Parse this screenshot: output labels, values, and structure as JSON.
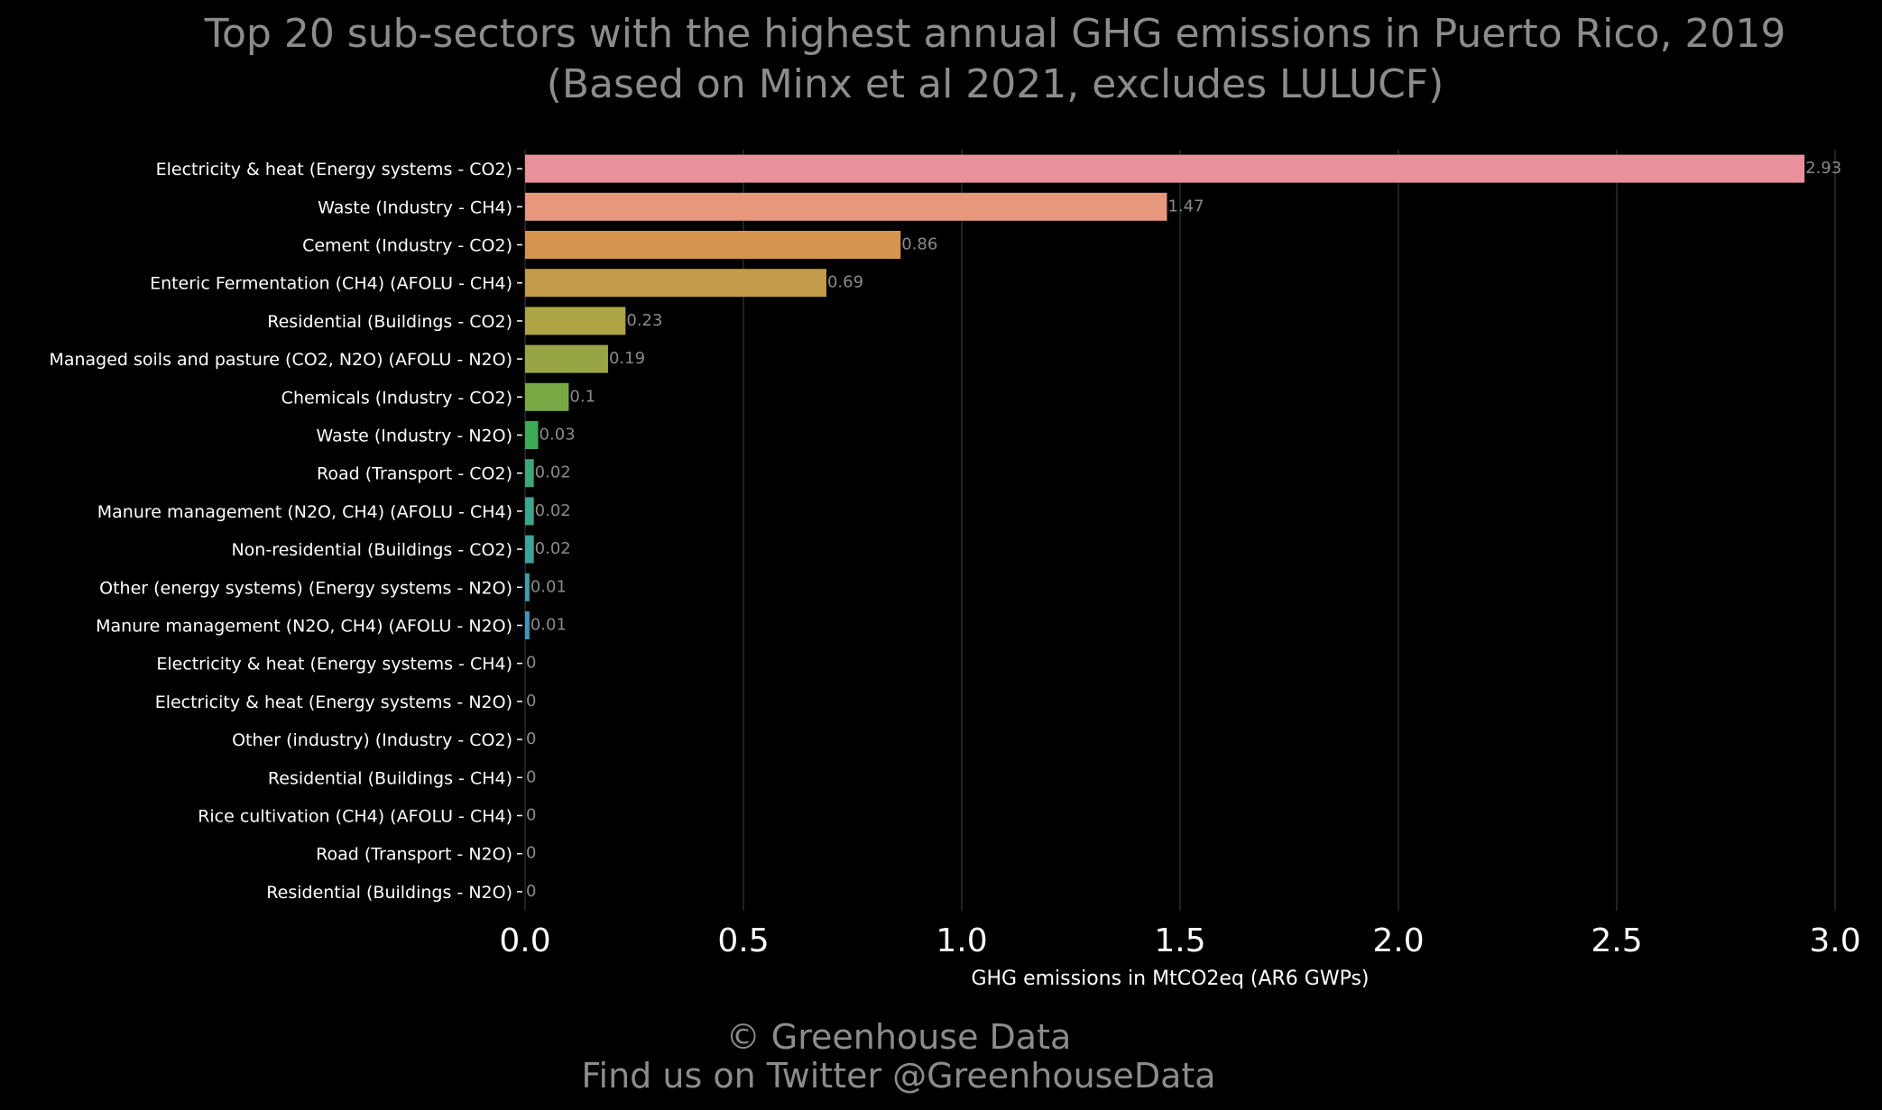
{
  "title_lines": [
    "Top 20 sub-sectors with the highest annual GHG emissions in Puerto Rico, 2019",
    "(Based on Minx et al 2021, excludes LULUCF)"
  ],
  "footer_lines": [
    "© Greenhouse Data",
    "Find us on Twitter @GreenhouseData"
  ],
  "chart_data": {
    "type": "bar",
    "orientation": "horizontal",
    "title": "Top 20 sub-sectors with the highest annual GHG emissions in Puerto Rico, 2019",
    "subtitle": "(Based on Minx et al 2021, excludes LULUCF)",
    "xlabel": "GHG emissions in MtCO2eq (AR6 GWPs)",
    "ylabel": "",
    "xlim": [
      0,
      3.0
    ],
    "x_ticks": [
      "0.0",
      "0.5",
      "1.0",
      "1.5",
      "2.0",
      "2.5",
      "3.0"
    ],
    "x_tick_values": [
      0,
      0.5,
      1.0,
      1.5,
      2.0,
      2.5,
      3.0
    ],
    "grid": "vertical",
    "background": "#000000",
    "categories": [
      "Electricity & heat (Energy systems - CO2)",
      "Waste (Industry - CH4)",
      "Cement (Industry - CO2)",
      "Enteric Fermentation (CH4) (AFOLU - CH4)",
      "Residential (Buildings - CO2)",
      "Managed soils and pasture (CO2, N2O) (AFOLU - N2O)",
      "Chemicals (Industry - CO2)",
      "Waste (Industry - N2O)",
      "Road (Transport - CO2)",
      "Manure management (N2O, CH4) (AFOLU - CH4)",
      "Non-residential (Buildings - CO2)",
      "Other (energy systems) (Energy systems - N2O)",
      "Manure management (N2O, CH4) (AFOLU - N2O)",
      "Electricity & heat (Energy systems - CH4)",
      "Electricity & heat (Energy systems - N2O)",
      "Other (industry) (Industry - CO2)",
      "Residential (Buildings - CH4)",
      "Rice cultivation (CH4) (AFOLU - CH4)",
      "Road (Transport - N2O)",
      "Residential (Buildings - N2O)"
    ],
    "values": [
      2.93,
      1.47,
      0.86,
      0.69,
      0.23,
      0.19,
      0.1,
      0.03,
      0.02,
      0.02,
      0.02,
      0.01,
      0.01,
      0,
      0,
      0,
      0,
      0,
      0,
      0
    ],
    "value_labels": [
      "2.93",
      "1.47",
      "0.86",
      "0.69",
      "0.23",
      "0.19",
      "0.1",
      "0.03",
      "0.02",
      "0.02",
      "0.02",
      "0.01",
      "0.01",
      "0",
      "0",
      "0",
      "0",
      "0",
      "0",
      "0"
    ],
    "colors": [
      "#e8909c",
      "#e8977f",
      "#d6944f",
      "#c39b4a",
      "#ada444",
      "#98a545",
      "#78a844",
      "#3daa55",
      "#3aa878",
      "#3aa68c",
      "#3aa49a",
      "#3d9fb0",
      "#3c9ac0",
      "#4a92cc",
      "#7a8ad4",
      "#a07fd8",
      "#bc75d6",
      "#d06fc4",
      "#e070aa",
      "#e87a98"
    ]
  }
}
